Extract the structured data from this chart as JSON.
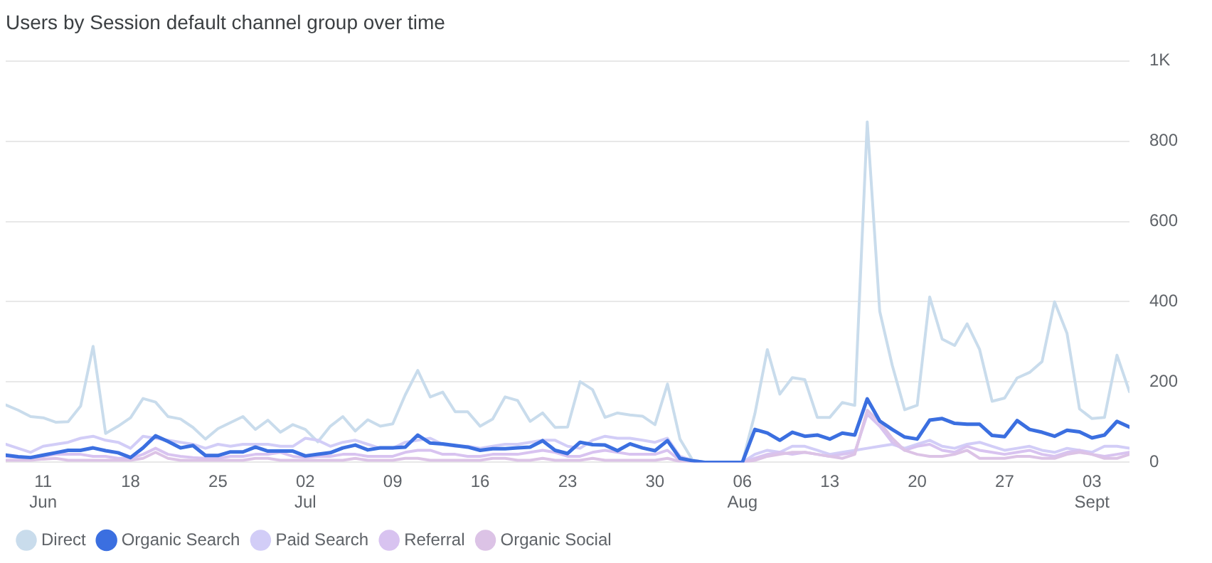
{
  "chart_data": {
    "type": "line",
    "title": "Users by Session default channel group over time",
    "x": [
      "--06-08",
      "--06-09",
      "--06-10",
      "--06-11",
      "--06-12",
      "--06-13",
      "--06-14",
      "--06-15",
      "--06-16",
      "--06-17",
      "--06-18",
      "--06-19",
      "--06-20",
      "--06-21",
      "--06-22",
      "--06-23",
      "--06-24",
      "--06-25",
      "--06-26",
      "--06-27",
      "--06-28",
      "--06-29",
      "--06-30",
      "--07-01",
      "--07-02",
      "--07-03",
      "--07-04",
      "--07-05",
      "--07-06",
      "--07-07",
      "--07-08",
      "--07-09",
      "--07-10",
      "--07-11",
      "--07-12",
      "--07-13",
      "--07-14",
      "--07-15",
      "--07-16",
      "--07-17",
      "--07-18",
      "--07-19",
      "--07-20",
      "--07-21",
      "--07-22",
      "--07-23",
      "--07-24",
      "--07-25",
      "--07-26",
      "--07-27",
      "--07-28",
      "--07-29",
      "--07-30",
      "--07-31",
      "--08-01",
      "--08-02",
      "--08-03",
      "--08-04",
      "--08-05",
      "--08-06",
      "--08-07",
      "--08-08",
      "--08-09",
      "--08-10",
      "--08-11",
      "--08-12",
      "--08-13",
      "--08-14",
      "--08-15",
      "--08-16",
      "--08-17",
      "--08-18",
      "--08-19",
      "--08-20",
      "--08-21",
      "--08-22",
      "--08-23",
      "--08-24",
      "--08-25",
      "--08-26",
      "--08-27",
      "--08-28",
      "--08-29",
      "--08-30",
      "--08-31",
      "--09-01",
      "--09-02",
      "--09-03",
      "--09-04",
      "--09-05",
      "--09-06"
    ],
    "series": [
      {
        "name": "Direct",
        "color": "#c9dcec",
        "values": [
          143,
          130,
          114,
          111,
          100,
          101,
          140,
          289,
          72,
          90,
          111,
          159,
          150,
          114,
          108,
          87,
          58,
          84,
          99,
          114,
          82,
          105,
          75,
          94,
          82,
          51,
          90,
          114,
          78,
          106,
          90,
          96,
          168,
          229,
          163,
          175,
          126,
          126,
          90,
          108,
          163,
          154,
          102,
          123,
          87,
          88,
          201,
          181,
          112,
          123,
          118,
          115,
          94,
          195,
          58,
          6,
          0,
          0,
          0,
          0,
          121,
          281,
          170,
          211,
          206,
          112,
          112,
          149,
          142,
          848,
          376,
          242,
          131,
          142,
          412,
          307,
          291,
          345,
          281,
          152,
          160,
          210,
          224,
          251,
          400,
          321,
          133,
          109,
          112,
          267,
          176
        ]
      },
      {
        "name": "Organic Search",
        "color": "#3b6fe0",
        "values": [
          18,
          14,
          12,
          18,
          24,
          30,
          30,
          36,
          29,
          24,
          12,
          36,
          66,
          52,
          36,
          42,
          17,
          17,
          26,
          26,
          38,
          28,
          28,
          28,
          16,
          20,
          24,
          36,
          43,
          31,
          36,
          36,
          38,
          68,
          48,
          46,
          42,
          38,
          30,
          34,
          34,
          36,
          38,
          54,
          30,
          22,
          50,
          44,
          43,
          29,
          46,
          36,
          29,
          54,
          10,
          4,
          0,
          0,
          0,
          0,
          82,
          73,
          55,
          75,
          65,
          68,
          58,
          73,
          68,
          158,
          103,
          82,
          63,
          58,
          105,
          109,
          97,
          95,
          95,
          67,
          64,
          104,
          82,
          75,
          65,
          80,
          76,
          61,
          68,
          102,
          88
        ]
      },
      {
        "name": "Paid Search",
        "color": "#d2cdf7",
        "values": [
          45,
          35,
          25,
          40,
          45,
          50,
          60,
          65,
          55,
          50,
          35,
          65,
          60,
          55,
          50,
          45,
          35,
          45,
          40,
          45,
          45,
          45,
          40,
          40,
          60,
          55,
          40,
          50,
          55,
          45,
          35,
          35,
          50,
          55,
          60,
          45,
          40,
          40,
          35,
          40,
          45,
          45,
          50,
          55,
          55,
          40,
          35,
          55,
          65,
          60,
          60,
          55,
          50,
          60,
          15,
          5,
          0,
          0,
          0,
          0,
          20,
          30,
          25,
          40,
          40,
          30,
          20,
          25,
          30,
          35,
          40,
          45,
          35,
          45,
          55,
          40,
          35,
          45,
          50,
          40,
          30,
          35,
          40,
          30,
          25,
          35,
          30,
          25,
          40,
          40,
          35
        ]
      },
      {
        "name": "Referral",
        "color": "#d8c3f0",
        "values": [
          15,
          12,
          10,
          15,
          20,
          20,
          20,
          15,
          15,
          10,
          10,
          20,
          35,
          20,
          15,
          12,
          10,
          10,
          15,
          15,
          20,
          20,
          25,
          15,
          12,
          15,
          15,
          20,
          20,
          15,
          15,
          15,
          25,
          30,
          30,
          20,
          20,
          15,
          15,
          20,
          20,
          20,
          25,
          30,
          25,
          15,
          15,
          25,
          30,
          25,
          20,
          20,
          20,
          30,
          5,
          2,
          0,
          0,
          0,
          0,
          10,
          20,
          25,
          20,
          25,
          20,
          15,
          20,
          25,
          120,
          90,
          50,
          30,
          40,
          45,
          30,
          25,
          40,
          30,
          25,
          20,
          25,
          30,
          20,
          15,
          25,
          30,
          20,
          15,
          20,
          25
        ]
      },
      {
        "name": "Organic Social",
        "color": "#dcc3e6",
        "values": [
          5,
          5,
          5,
          8,
          10,
          5,
          5,
          5,
          5,
          5,
          5,
          10,
          25,
          10,
          5,
          5,
          5,
          5,
          5,
          5,
          10,
          10,
          5,
          5,
          5,
          5,
          5,
          5,
          10,
          5,
          5,
          5,
          10,
          10,
          5,
          5,
          5,
          5,
          5,
          10,
          10,
          5,
          5,
          10,
          5,
          5,
          5,
          10,
          5,
          5,
          5,
          5,
          5,
          10,
          2,
          0,
          0,
          0,
          0,
          0,
          5,
          15,
          20,
          25,
          25,
          20,
          15,
          10,
          20,
          130,
          100,
          60,
          30,
          20,
          15,
          15,
          20,
          30,
          10,
          10,
          10,
          15,
          15,
          10,
          10,
          20,
          25,
          20,
          10,
          10,
          20
        ]
      }
    ],
    "xlim": [
      "--06-08",
      "--09-06"
    ],
    "xticks": [
      {
        "value": "--06-11",
        "label": "11\nJun"
      },
      {
        "value": "--06-18",
        "label": "18"
      },
      {
        "value": "--06-25",
        "label": "25"
      },
      {
        "value": "--07-02",
        "label": "02\nJul"
      },
      {
        "value": "--07-09",
        "label": "09"
      },
      {
        "value": "--07-16",
        "label": "16"
      },
      {
        "value": "--07-23",
        "label": "23"
      },
      {
        "value": "--07-30",
        "label": "30"
      },
      {
        "value": "--08-06",
        "label": "06\nAug"
      },
      {
        "value": "--08-13",
        "label": "13"
      },
      {
        "value": "--08-20",
        "label": "20"
      },
      {
        "value": "--08-27",
        "label": "27"
      },
      {
        "value": "--09-03",
        "label": "03\nSept"
      }
    ],
    "ylim": [
      0,
      1000
    ],
    "yticks": [
      0,
      200,
      400,
      600,
      800,
      {
        "value": 1000,
        "label": "1K"
      }
    ],
    "grid": "y",
    "legend": "bottom",
    "marker": "none",
    "line_style": "solid"
  }
}
